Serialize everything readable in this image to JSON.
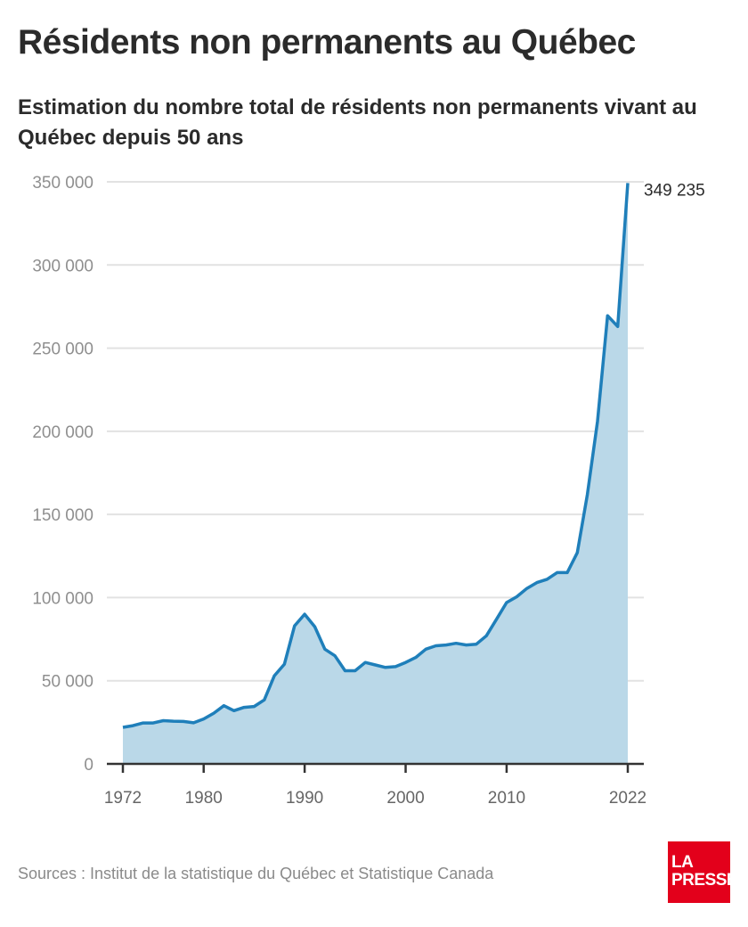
{
  "title": "Résidents non permanents au Québec",
  "subtitle": "Estimation du nombre total de résidents non permanents vivant au Québec depuis 50 ans",
  "source": "Sources : Institut de la statistique du Québec et Statistique Canada",
  "logo": {
    "line1": "LA",
    "line2": "PRESSE",
    "color": "#e3001b"
  },
  "chart_data": {
    "type": "area",
    "title": "Résidents non permanents au Québec",
    "subtitle": "Estimation du nombre total de résidents non permanents vivant au Québec depuis 50 ans",
    "xlabel": "",
    "ylabel": "",
    "ylim": [
      0,
      350000
    ],
    "xlim": [
      1972,
      2022
    ],
    "grid": true,
    "yticks": [
      0,
      50000,
      100000,
      150000,
      200000,
      250000,
      300000,
      350000
    ],
    "ytick_labels": [
      "0",
      "50 000",
      "100 000",
      "150 000",
      "200 000",
      "250 000",
      "300 000",
      "350 000"
    ],
    "xticks": [
      1972,
      1980,
      1990,
      2000,
      2010,
      2022
    ],
    "xtick_labels": [
      "1972",
      "1980",
      "1990",
      "2000",
      "2010",
      "2022"
    ],
    "end_label": "349 235",
    "line_color": "#1f7fba",
    "fill_color": "#bad8e8",
    "x": [
      1972,
      1973,
      1974,
      1975,
      1976,
      1977,
      1978,
      1979,
      1980,
      1981,
      1982,
      1983,
      1984,
      1985,
      1986,
      1987,
      1988,
      1989,
      1990,
      1991,
      1992,
      1993,
      1994,
      1995,
      1996,
      1997,
      1998,
      1999,
      2000,
      2001,
      2002,
      2003,
      2004,
      2005,
      2006,
      2007,
      2008,
      2009,
      2010,
      2011,
      2012,
      2013,
      2014,
      2015,
      2016,
      2017,
      2018,
      2019,
      2020,
      2021,
      2022
    ],
    "values": [
      22000,
      23000,
      24600,
      24600,
      26000,
      25700,
      25500,
      24700,
      27000,
      30500,
      35000,
      32000,
      34000,
      34500,
      38500,
      53000,
      60000,
      83000,
      90000,
      82500,
      69000,
      65000,
      56000,
      56000,
      61000,
      59500,
      58000,
      58500,
      61000,
      64000,
      69000,
      71000,
      71500,
      72500,
      71500,
      72000,
      77000,
      87000,
      97000,
      100500,
      105500,
      109000,
      111000,
      115000,
      115000,
      127000,
      162000,
      206000,
      269500,
      263000,
      349235
    ]
  }
}
